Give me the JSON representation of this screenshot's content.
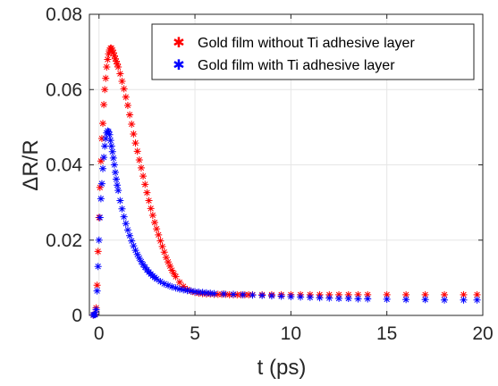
{
  "chart_data": {
    "type": "scatter",
    "xlabel": "t (ps)",
    "ylabel": "ΔR/R",
    "xlim": [
      -0.5,
      20
    ],
    "ylim": [
      0,
      0.08
    ],
    "xticks": [
      0,
      5,
      10,
      15,
      20
    ],
    "xtick_labels": [
      "0",
      "5",
      "10",
      "15",
      "20"
    ],
    "yticks": [
      0,
      0.02,
      0.04,
      0.06,
      0.08
    ],
    "ytick_labels": [
      "0",
      "0.02",
      "0.04",
      "0.06",
      "0.08"
    ],
    "grid": true,
    "legend_position": "top-right",
    "marker": "*",
    "series": [
      {
        "name": "Gold film without Ti adhesive layer",
        "color": "#ff0000",
        "x": [
          -0.3,
          -0.25,
          -0.2,
          -0.15,
          -0.1,
          -0.05,
          0.0,
          0.05,
          0.1,
          0.15,
          0.2,
          0.25,
          0.3,
          0.35,
          0.4,
          0.45,
          0.5,
          0.55,
          0.6,
          0.65,
          0.7,
          0.75,
          0.8,
          0.85,
          0.9,
          0.95,
          1.0,
          1.1,
          1.2,
          1.3,
          1.4,
          1.5,
          1.6,
          1.7,
          1.8,
          1.9,
          2.0,
          2.1,
          2.2,
          2.3,
          2.4,
          2.5,
          2.6,
          2.7,
          2.8,
          2.9,
          3.0,
          3.1,
          3.2,
          3.3,
          3.4,
          3.5,
          3.6,
          3.7,
          3.8,
          3.9,
          4.0,
          4.2,
          4.4,
          4.6,
          4.8,
          5.0,
          5.2,
          5.4,
          5.6,
          5.8,
          6.0,
          6.2,
          6.4,
          6.6,
          6.8,
          7.0,
          7.2,
          7.4,
          7.6,
          7.8,
          8.0,
          8.5,
          9.0,
          9.5,
          10.0,
          10.5,
          11.0,
          11.5,
          12.0,
          12.5,
          13.0,
          13.5,
          14.0,
          15.0,
          16.0,
          17.0,
          18.0,
          19.0,
          19.7
        ],
        "y": [
          0.0001,
          0.0002,
          0.0003,
          0.002,
          0.008,
          0.017,
          0.026,
          0.034,
          0.041,
          0.047,
          0.051,
          0.056,
          0.06,
          0.063,
          0.066,
          0.068,
          0.0695,
          0.0705,
          0.071,
          0.071,
          0.0705,
          0.0698,
          0.069,
          0.0682,
          0.0675,
          0.0668,
          0.066,
          0.0642,
          0.0622,
          0.0602,
          0.058,
          0.0558,
          0.0533,
          0.0508,
          0.0482,
          0.0458,
          0.0436,
          0.0413,
          0.0392,
          0.037,
          0.0348,
          0.0326,
          0.0305,
          0.0284,
          0.0266,
          0.0247,
          0.023,
          0.0214,
          0.0198,
          0.0183,
          0.0168,
          0.0154,
          0.0142,
          0.0131,
          0.012,
          0.0111,
          0.0103,
          0.0088,
          0.0077,
          0.0069,
          0.0064,
          0.0061,
          0.0059,
          0.0058,
          0.0057,
          0.0057,
          0.0056,
          0.0056,
          0.0056,
          0.0056,
          0.0055,
          0.0055,
          0.0055,
          0.0055,
          0.0055,
          0.0055,
          0.0055,
          0.0055,
          0.0055,
          0.0055,
          0.0055,
          0.0055,
          0.0055,
          0.0055,
          0.0055,
          0.0055,
          0.0055,
          0.0055,
          0.0055,
          0.0055,
          0.0055,
          0.0055,
          0.0055,
          0.0055,
          0.0055
        ]
      },
      {
        "name": "Gold film with Ti adhesive layer",
        "color": "#0000ff",
        "x": [
          -0.3,
          -0.25,
          -0.2,
          -0.15,
          -0.1,
          -0.05,
          0.0,
          0.05,
          0.1,
          0.15,
          0.2,
          0.25,
          0.3,
          0.35,
          0.4,
          0.45,
          0.5,
          0.55,
          0.6,
          0.65,
          0.7,
          0.75,
          0.8,
          0.85,
          0.9,
          0.95,
          1.0,
          1.1,
          1.2,
          1.3,
          1.4,
          1.5,
          1.6,
          1.7,
          1.8,
          1.9,
          2.0,
          2.1,
          2.2,
          2.3,
          2.4,
          2.5,
          2.6,
          2.7,
          2.8,
          2.9,
          3.0,
          3.2,
          3.4,
          3.6,
          3.8,
          4.0,
          4.2,
          4.4,
          4.6,
          4.8,
          5.0,
          5.2,
          5.4,
          5.6,
          5.8,
          6.0,
          6.5,
          7.0,
          7.5,
          8.0,
          8.5,
          9.0,
          9.5,
          10.0,
          10.5,
          11.0,
          11.5,
          12.0,
          12.5,
          13.0,
          13.5,
          14.0,
          15.0,
          16.0,
          17.0,
          18.0,
          19.0,
          19.7
        ],
        "y": [
          0.0001,
          0.0002,
          0.0002,
          0.0015,
          0.0065,
          0.013,
          0.02,
          0.026,
          0.031,
          0.035,
          0.039,
          0.042,
          0.045,
          0.047,
          0.0485,
          0.049,
          0.0488,
          0.048,
          0.0465,
          0.045,
          0.0435,
          0.0418,
          0.04,
          0.038,
          0.0362,
          0.0346,
          0.0332,
          0.0305,
          0.0283,
          0.0262,
          0.0244,
          0.0227,
          0.0212,
          0.0198,
          0.0185,
          0.0173,
          0.0162,
          0.0152,
          0.0143,
          0.0135,
          0.0128,
          0.0121,
          0.0115,
          0.011,
          0.0105,
          0.0101,
          0.0097,
          0.009,
          0.0084,
          0.008,
          0.0076,
          0.0073,
          0.007,
          0.0068,
          0.0066,
          0.0065,
          0.0063,
          0.0062,
          0.0061,
          0.006,
          0.0059,
          0.0058,
          0.0057,
          0.0056,
          0.0055,
          0.0054,
          0.0053,
          0.0052,
          0.0051,
          0.005,
          0.0049,
          0.0048,
          0.0047,
          0.0046,
          0.0045,
          0.0045,
          0.0044,
          0.0044,
          0.0043,
          0.0042,
          0.0042,
          0.0041,
          0.0041,
          0.0041
        ]
      }
    ]
  }
}
